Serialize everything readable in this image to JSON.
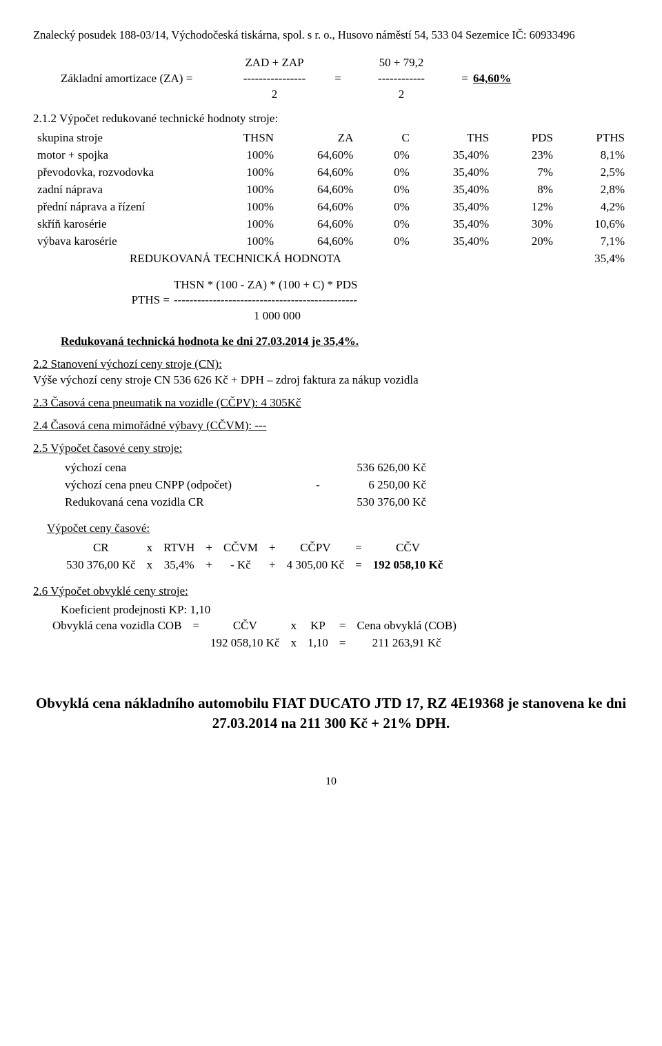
{
  "header": "Znalecký posudek 188-03/14, Východočeská tiskárna, spol. s r. o., Husovo náměstí 54, 533 04 Sezemice IČ: 60933496",
  "za": {
    "top_left": "ZAD + ZAP",
    "top_right": "50 + 79,2",
    "label": "Základní amortizace (ZA) =",
    "dash1": "----------------",
    "dash2": "------------",
    "bot_left": "2",
    "bot_right": "2",
    "eq": "=",
    "result": "64,60%"
  },
  "s21": {
    "title": "2.1.2 Výpočet redukované technické hodnoty stroje:",
    "cols": [
      "skupina stroje",
      "THSN",
      "ZA",
      "C",
      "THS",
      "PDS",
      "PTHS"
    ],
    "rows": [
      [
        "motor + spojka",
        "100%",
        "64,60%",
        "0%",
        "35,40%",
        "23%",
        "8,1%"
      ],
      [
        "převodovka, rozvodovka",
        "100%",
        "64,60%",
        "0%",
        "35,40%",
        "7%",
        "2,5%"
      ],
      [
        "zadní náprava",
        "100%",
        "64,60%",
        "0%",
        "35,40%",
        "8%",
        "2,8%"
      ],
      [
        "přední náprava a řízení",
        "100%",
        "64,60%",
        "0%",
        "35,40%",
        "12%",
        "4,2%"
      ],
      [
        "skříň karosérie",
        "100%",
        "64,60%",
        "0%",
        "35,40%",
        "30%",
        "10,6%"
      ],
      [
        "výbava karosérie",
        "100%",
        "64,60%",
        "0%",
        "35,40%",
        "20%",
        "7,1%"
      ]
    ],
    "reduk_label": "REDUKOVANÁ TECHNICKÁ HODNOTA",
    "reduk_val": "35,4%"
  },
  "pths": {
    "top": "THSN * (100 - ZA) * (100 + C) * PDS",
    "label": "PTHS =",
    "dash": "-----------------------------------------------",
    "bot": "1 000 000"
  },
  "reduk_line": "Redukovaná technická hodnota ke dni 27.03.2014 je 35,4%.",
  "s22": {
    "head": "2.2 Stanovení výchozí ceny stroje (CN):",
    "body": "Výše výchozí ceny stroje  CN 536 626 Kč + DPH – zdroj faktura za nákup vozidla"
  },
  "s23": "2.3 Časová cena pneumatik na vozidle (CČPV):  4 305Kč",
  "s24": "2.4 Časová cena mimořádné výbavy (CČVM):  ---",
  "s25": {
    "head": "2.5 Výpočet časové ceny stroje:",
    "rows": [
      [
        "výchozí cena",
        "",
        "536 626,00 Kč"
      ],
      [
        "výchozí cena pneu CNPP (odpočet)",
        "-",
        "6 250,00 Kč"
      ],
      [
        "Redukovaná cena vozidla CR",
        "",
        "530 376,00 Kč"
      ]
    ]
  },
  "vypocet": {
    "head": "Výpočet ceny časové:",
    "h": [
      "CR",
      "x",
      "RTVH",
      "+",
      "CČVM",
      "+",
      "CČPV",
      "=",
      "CČV"
    ],
    "v": [
      "530 376,00 Kč",
      "x",
      "35,4%",
      "+",
      "-   Kč",
      "+",
      "4 305,00 Kč",
      "=",
      "192 058,10 Kč"
    ]
  },
  "s26": {
    "head": "2.6 Výpočet obvyklé ceny stroje:",
    "koef": "Koeficient prodejnosti  KP: 1,10",
    "h": [
      "Obvyklá cena vozidla COB",
      "=",
      "CČV",
      "x",
      "KP",
      "=",
      "Cena obvyklá (COB)"
    ],
    "v": [
      "",
      "",
      "192 058,10 Kč",
      "x",
      "1,10",
      "=",
      "211 263,91 Kč"
    ]
  },
  "result": "Obvyklá cena nákladního automobilu FIAT DUCATO JTD 17, RZ 4E19368 je stanovena ke dni 27.03.2014 na 211 300 Kč + 21% DPH.",
  "page": "10",
  "style": {
    "font": "Times New Roman",
    "body_pt": 13,
    "result_pt": 16,
    "text_color": "#000000",
    "bg_color": "#ffffff"
  }
}
